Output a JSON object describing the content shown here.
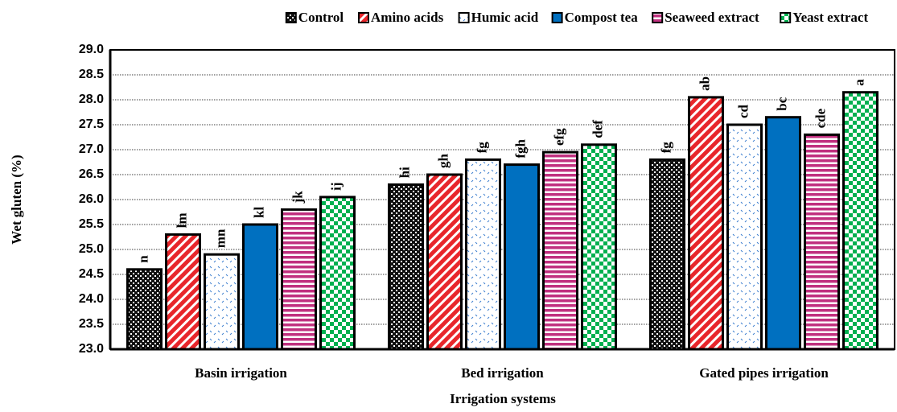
{
  "chart_data": {
    "type": "bar",
    "y_label": "Wet gluten (%)",
    "x_label": "Irrigation systems",
    "categories": [
      "Basin irrigation",
      "Bed irrigation",
      "Gated pipes irrigation"
    ],
    "series": [
      {
        "name": "Control",
        "color": "#000000",
        "values": [
          24.6,
          26.3,
          26.8
        ],
        "letters": [
          "n",
          "hi",
          "fg"
        ]
      },
      {
        "name": "Amino acids",
        "color": "#e8262b",
        "values": [
          25.3,
          26.5,
          28.05
        ],
        "letters": [
          "lm",
          "gh",
          "ab"
        ]
      },
      {
        "name": "Humic acid",
        "color": "#3d7fd0",
        "values": [
          24.9,
          26.8,
          27.5
        ],
        "letters": [
          "mn",
          "fg",
          "cd"
        ]
      },
      {
        "name": "Compost tea",
        "color": "#0070c0",
        "values": [
          25.5,
          26.7,
          27.65
        ],
        "letters": [
          "kl",
          "fgh",
          "bc"
        ]
      },
      {
        "name": "Seaweed extract",
        "color": "#c0307f",
        "values": [
          25.8,
          26.95,
          27.3
        ],
        "letters": [
          "jk",
          "efg",
          "cde"
        ]
      },
      {
        "name": "Yeast extract",
        "color": "#00b050",
        "values": [
          26.05,
          27.1,
          28.15
        ],
        "letters": [
          "ij",
          "def",
          "a"
        ]
      }
    ],
    "ylim": [
      23,
      29
    ],
    "yticks": [
      {
        "value": 23,
        "label": "23.0"
      },
      23.5,
      {
        "value": 24,
        "label": "24.0"
      },
      24.5,
      {
        "value": 25,
        "label": "25.0"
      },
      25.5,
      {
        "value": 26,
        "label": "26.0"
      },
      26.5,
      {
        "value": 27,
        "label": "27.0"
      },
      27.5,
      {
        "value": 28,
        "label": "28.0"
      },
      28.5,
      {
        "value": 29,
        "label": "29.0"
      }
    ],
    "grid": true,
    "legend": "top"
  }
}
